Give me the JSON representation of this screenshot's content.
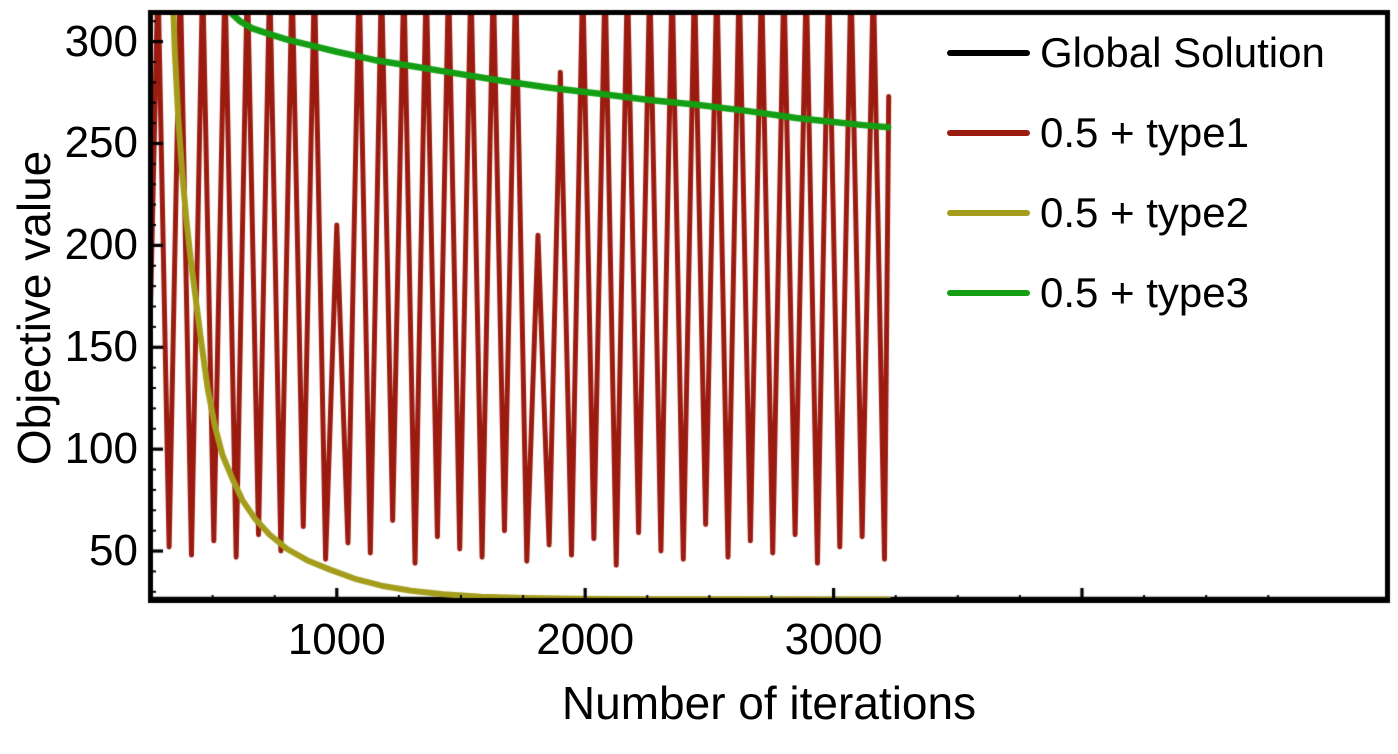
{
  "figure": {
    "background": "#ffffff",
    "frame_color": "#000000",
    "text_color": "#000000"
  },
  "chart_data": {
    "type": "line",
    "title": "",
    "xlabel": "Number of iterations",
    "ylabel": "Objective value",
    "xlim": [
      240,
      5240
    ],
    "ylim": [
      24.5,
      315.5
    ],
    "grid": false,
    "legend_position": "top-right",
    "x_axis": {
      "major_ticks": [
        1000,
        2000,
        3000,
        4000
      ],
      "labeled_ticks": [
        {
          "value": 1000,
          "label": "1000"
        },
        {
          "value": 2000,
          "label": "2000"
        },
        {
          "value": 3000,
          "label": "3000"
        }
      ],
      "minor_tick_step": 250
    },
    "y_axis": {
      "major_ticks": [
        50,
        100,
        150,
        200,
        250,
        300
      ],
      "labeled_ticks": [
        {
          "value": 50,
          "label": "50"
        },
        {
          "value": 100,
          "label": "100"
        },
        {
          "value": 150,
          "label": "150"
        },
        {
          "value": 200,
          "label": "200"
        },
        {
          "value": 250,
          "label": "250"
        },
        {
          "value": 300,
          "label": "300"
        }
      ],
      "minor_tick_step": 10
    },
    "series": [
      {
        "name": "Global Solution",
        "color": "#000000",
        "line_width": 4.5,
        "points": [
          [
            240,
            26.5
          ],
          [
            5240,
            26.5
          ]
        ]
      },
      {
        "name": "0.5 + type1",
        "color": "#9B1B10",
        "line_width": 5,
        "note": "oscillating curve, peaks clipped above top of frame, ends near iteration 3220",
        "points": [
          [
            235,
            88
          ],
          [
            280,
            332
          ],
          [
            325,
            52
          ],
          [
            370,
            332
          ],
          [
            415,
            48
          ],
          [
            460,
            332
          ],
          [
            505,
            55
          ],
          [
            550,
            332
          ],
          [
            595,
            47
          ],
          [
            640,
            332
          ],
          [
            685,
            58
          ],
          [
            730,
            332
          ],
          [
            775,
            50
          ],
          [
            820,
            332
          ],
          [
            865,
            62
          ],
          [
            910,
            332
          ],
          [
            955,
            46
          ],
          [
            1000,
            210
          ],
          [
            1045,
            54
          ],
          [
            1090,
            332
          ],
          [
            1135,
            49
          ],
          [
            1180,
            332
          ],
          [
            1225,
            65
          ],
          [
            1270,
            332
          ],
          [
            1315,
            44
          ],
          [
            1360,
            332
          ],
          [
            1405,
            57
          ],
          [
            1450,
            332
          ],
          [
            1495,
            51
          ],
          [
            1540,
            332
          ],
          [
            1585,
            47
          ],
          [
            1630,
            332
          ],
          [
            1675,
            60
          ],
          [
            1720,
            332
          ],
          [
            1765,
            45
          ],
          [
            1810,
            205
          ],
          [
            1855,
            53
          ],
          [
            1900,
            285
          ],
          [
            1945,
            48
          ],
          [
            1990,
            332
          ],
          [
            2035,
            56
          ],
          [
            2080,
            332
          ],
          [
            2125,
            43
          ],
          [
            2170,
            332
          ],
          [
            2215,
            59
          ],
          [
            2260,
            332
          ],
          [
            2305,
            50
          ],
          [
            2350,
            332
          ],
          [
            2395,
            46
          ],
          [
            2440,
            332
          ],
          [
            2485,
            63
          ],
          [
            2530,
            332
          ],
          [
            2575,
            47
          ],
          [
            2620,
            332
          ],
          [
            2665,
            55
          ],
          [
            2710,
            332
          ],
          [
            2755,
            49
          ],
          [
            2800,
            332
          ],
          [
            2845,
            58
          ],
          [
            2890,
            332
          ],
          [
            2935,
            44
          ],
          [
            2980,
            332
          ],
          [
            3025,
            52
          ],
          [
            3070,
            332
          ],
          [
            3115,
            57
          ],
          [
            3160,
            332
          ],
          [
            3205,
            46
          ],
          [
            3222,
            273
          ]
        ]
      },
      {
        "name": "0.5 + type2",
        "color": "#A49D1C",
        "line_width": 6,
        "points": [
          [
            335,
            340
          ],
          [
            348,
            295
          ],
          [
            362,
            262
          ],
          [
            378,
            235
          ],
          [
            395,
            212
          ],
          [
            412,
            193
          ],
          [
            432,
            174
          ],
          [
            455,
            152
          ],
          [
            480,
            130
          ],
          [
            508,
            112
          ],
          [
            540,
            97
          ],
          [
            578,
            86
          ],
          [
            620,
            75
          ],
          [
            670,
            66
          ],
          [
            730,
            58
          ],
          [
            800,
            51
          ],
          [
            880,
            45.5
          ],
          [
            970,
            41
          ],
          [
            1070,
            36.5
          ],
          [
            1180,
            33
          ],
          [
            1300,
            30.5
          ],
          [
            1430,
            28.8
          ],
          [
            1580,
            27.6
          ],
          [
            1760,
            26.9
          ],
          [
            1980,
            26.6
          ],
          [
            2250,
            26.4
          ],
          [
            2600,
            26.3
          ],
          [
            2950,
            26.25
          ],
          [
            3220,
            26.2
          ]
        ]
      },
      {
        "name": "0.5 + type3",
        "color": "#149E14",
        "line_width": 6.5,
        "points": [
          [
            540,
            332
          ],
          [
            560,
            320
          ],
          [
            575,
            314
          ],
          [
            610,
            310
          ],
          [
            660,
            306.5
          ],
          [
            720,
            304
          ],
          [
            800,
            301
          ],
          [
            900,
            298
          ],
          [
            1000,
            295
          ],
          [
            1150,
            291
          ],
          [
            1300,
            288
          ],
          [
            1450,
            285
          ],
          [
            1650,
            281
          ],
          [
            1850,
            277.5
          ],
          [
            2050,
            274.5
          ],
          [
            2250,
            271.5
          ],
          [
            2450,
            269
          ],
          [
            2650,
            266
          ],
          [
            2850,
            262.5
          ],
          [
            3000,
            260.5
          ],
          [
            3120,
            259
          ],
          [
            3220,
            258
          ]
        ]
      }
    ]
  }
}
